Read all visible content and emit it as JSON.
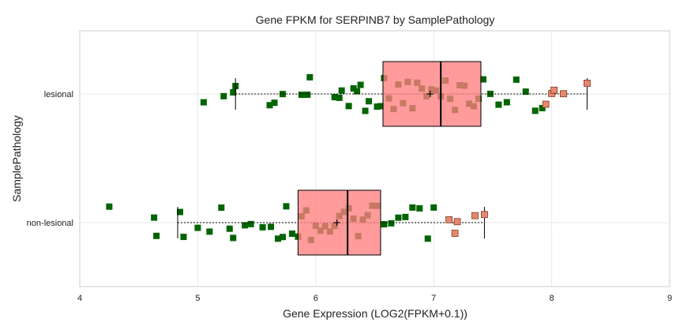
{
  "chart_data": {
    "type": "boxplot",
    "title": "Gene FPKM for SERPINB7 by SamplePathology",
    "xlabel": "Gene Expression (LOG2(FPKM+0.1))",
    "ylabel": "SamplePathology",
    "xlim": [
      4,
      9
    ],
    "xticks": [
      "4",
      "5",
      "6",
      "7",
      "8",
      "9"
    ],
    "categories": [
      "lesional",
      "non-lesional"
    ],
    "grid": true,
    "colors": {
      "box_fill": "#ff7f7f",
      "point": "#006400",
      "outlier": "#e8876f",
      "grid": "#e8e8e8",
      "frame": "#cccccc"
    },
    "boxes": [
      {
        "category": "lesional",
        "whisker_low": 5.32,
        "q1": 6.57,
        "median": 7.06,
        "q3": 7.4,
        "whisker_high": 8.3,
        "mean": 6.97,
        "points": [
          5.05,
          5.22,
          5.3,
          5.32,
          5.61,
          5.65,
          5.72,
          5.88,
          5.93,
          5.95,
          6.16,
          6.2,
          6.22,
          6.28,
          6.32,
          6.35,
          6.38,
          6.42,
          6.45,
          6.52,
          6.55,
          6.58,
          6.62,
          6.66,
          6.7,
          6.74,
          6.78,
          6.82,
          6.86,
          6.9,
          6.94,
          6.98,
          7.02,
          7.06,
          7.1,
          7.14,
          7.18,
          7.22,
          7.26,
          7.3,
          7.34,
          7.38,
          7.42,
          7.48,
          7.55,
          7.62,
          7.7,
          7.78,
          7.86,
          7.92
        ],
        "outliers": [
          7.95,
          8.0,
          8.02,
          8.1,
          8.3
        ]
      },
      {
        "category": "non-lesional",
        "whisker_low": 4.83,
        "q1": 5.85,
        "median": 6.27,
        "q3": 6.55,
        "whisker_high": 7.43,
        "mean": 6.18,
        "points": [
          4.25,
          4.63,
          4.65,
          4.85,
          4.88,
          5.0,
          5.1,
          5.2,
          5.27,
          5.3,
          5.4,
          5.45,
          5.55,
          5.62,
          5.68,
          5.72,
          5.75,
          5.8,
          5.85,
          5.88,
          5.92,
          5.96,
          6.0,
          6.04,
          6.08,
          6.12,
          6.16,
          6.2,
          6.24,
          6.28,
          6.32,
          6.36,
          6.4,
          6.44,
          6.48,
          6.52,
          6.58,
          6.64,
          6.7,
          6.76,
          6.82,
          6.88,
          6.95,
          7.0
        ],
        "outliers": [
          7.13,
          7.18,
          7.2,
          7.35,
          7.43
        ]
      }
    ]
  }
}
